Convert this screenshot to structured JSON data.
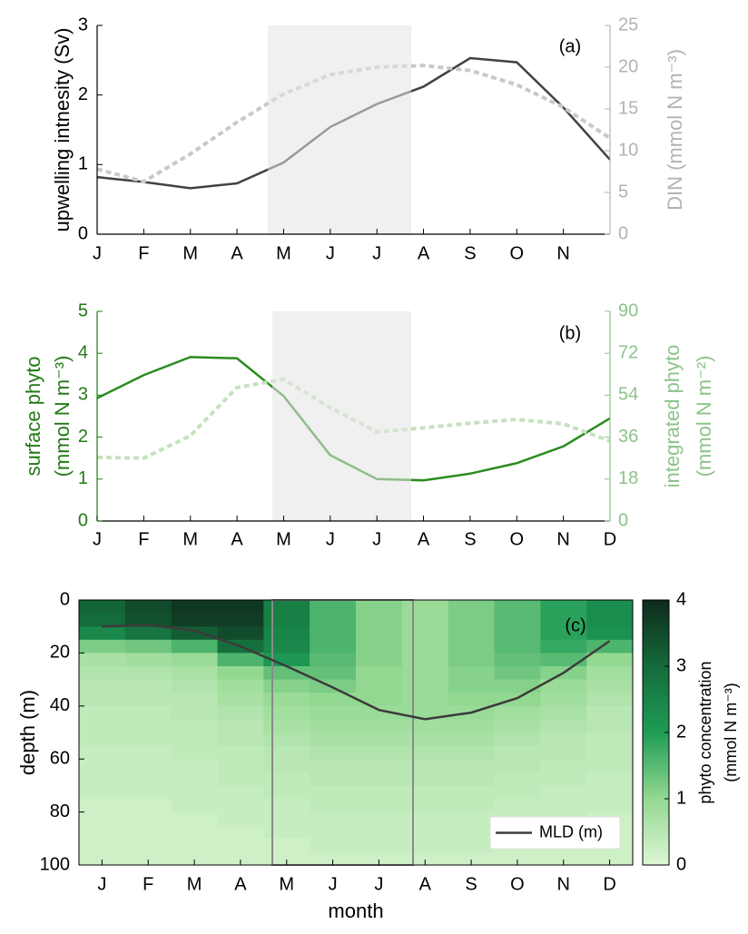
{
  "chart_data": [
    {
      "type": "line",
      "annotation": "(a)",
      "categories": [
        "J",
        "F",
        "M",
        "A",
        "M",
        "J",
        "J",
        "A",
        "S",
        "O",
        "N",
        null
      ],
      "ylabel": [
        "upwelling intnesity (Sv)"
      ],
      "y2label": [
        "DIN (mmol N m⁻³)"
      ],
      "ylim": [
        0,
        3
      ],
      "yticks": [
        0,
        1,
        2,
        3
      ],
      "ycolor": "#000000",
      "y2lim": [
        0,
        25
      ],
      "y2ticks": [
        0,
        5,
        10,
        15,
        20,
        25
      ],
      "y2color": "#b3b3b3",
      "series": [
        {
          "color": "#424242",
          "values": [
            0.82,
            0.75,
            0.66,
            0.73,
            1.03,
            1.54,
            1.87,
            2.12,
            2.53,
            2.47,
            1.82,
            1.07
          ]
        },
        {
          "color": "#c9c9c9",
          "dashed": true,
          "axis": "y2",
          "values": [
            7.8,
            6.3,
            9.6,
            13.4,
            16.8,
            19.1,
            20.0,
            20.2,
            19.6,
            17.9,
            15.2,
            11.5
          ]
        }
      ]
    },
    {
      "type": "line",
      "annotation": "(b)",
      "categories": [
        "J",
        "F",
        "M",
        "A",
        "M",
        "J",
        "J",
        "A",
        "S",
        "O",
        "N",
        "D"
      ],
      "ylabel": [
        "surface phyto",
        "(mmol N m⁻³)"
      ],
      "y2label": [
        "integrated phyto",
        "(mmol N m⁻²)"
      ],
      "ylim": [
        0,
        5
      ],
      "yticks": [
        0,
        1,
        2,
        3,
        4,
        5
      ],
      "ycolor": "#237a16",
      "y2lim": [
        0,
        90
      ],
      "y2ticks": [
        0,
        18,
        36,
        54,
        72,
        90
      ],
      "y2color": "#8cc38a",
      "series": [
        {
          "color": "#2a8c1e",
          "values": [
            2.93,
            3.48,
            3.91,
            3.88,
            2.98,
            1.57,
            1.0,
            0.97,
            1.13,
            1.38,
            1.78,
            2.45
          ]
        },
        {
          "color": "#c6e2bf",
          "dashed": true,
          "axis": "y2",
          "values": [
            27.3,
            27.0,
            36.6,
            57.3,
            60.8,
            48.7,
            38.2,
            40.0,
            42.0,
            43.6,
            41.7,
            34.3
          ]
        }
      ]
    },
    {
      "type": "heatmap",
      "annotation": "(c)",
      "categories": [
        "J",
        "F",
        "M",
        "A",
        "M",
        "J",
        "J",
        "A",
        "S",
        "O",
        "N",
        "D"
      ],
      "xlabel": "month",
      "ylabel": [
        "depth (m)"
      ],
      "ylim": [
        0,
        100
      ],
      "invert_y": true,
      "yticks": [
        0,
        20,
        40,
        60,
        80,
        100
      ],
      "depth_bins": [
        0,
        5,
        10,
        15,
        20,
        25,
        30,
        35,
        40,
        45,
        50,
        55,
        60,
        65,
        70,
        75,
        80,
        85,
        90,
        95,
        100
      ],
      "z": [
        [
          3.1,
          3.5,
          3.8,
          3.8,
          2.6,
          1.6,
          1.1,
          0.9,
          1.2,
          1.5,
          1.9,
          2.3
        ],
        [
          3.0,
          3.4,
          3.7,
          3.7,
          2.6,
          1.6,
          1.1,
          0.9,
          1.2,
          1.5,
          1.9,
          2.3
        ],
        [
          2.4,
          2.8,
          3.2,
          3.5,
          2.5,
          1.6,
          1.1,
          0.9,
          1.2,
          1.5,
          1.9,
          2.2
        ],
        [
          1.2,
          1.3,
          1.6,
          2.9,
          2.4,
          1.6,
          1.1,
          0.9,
          1.2,
          1.5,
          1.8,
          1.6
        ],
        [
          0.7,
          0.8,
          0.9,
          1.6,
          2.1,
          1.5,
          1.1,
          0.9,
          1.2,
          1.4,
          1.5,
          1.0
        ],
        [
          0.6,
          0.6,
          0.7,
          1.0,
          1.4,
          1.4,
          1.0,
          0.9,
          1.1,
          1.3,
          1.1,
          0.8
        ],
        [
          0.5,
          0.5,
          0.6,
          0.8,
          1.1,
          1.2,
          1.0,
          0.9,
          1.1,
          1.1,
          0.9,
          0.7
        ],
        [
          0.5,
          0.5,
          0.5,
          0.7,
          0.9,
          1.0,
          1.0,
          0.9,
          1.0,
          1.0,
          0.8,
          0.6
        ],
        [
          0.4,
          0.4,
          0.5,
          0.6,
          0.8,
          0.9,
          0.9,
          0.9,
          0.9,
          0.8,
          0.7,
          0.5
        ],
        [
          0.4,
          0.4,
          0.4,
          0.5,
          0.7,
          0.8,
          0.8,
          0.8,
          0.8,
          0.7,
          0.6,
          0.5
        ],
        [
          0.4,
          0.4,
          0.4,
          0.5,
          0.6,
          0.7,
          0.7,
          0.7,
          0.7,
          0.6,
          0.5,
          0.4
        ],
        [
          0.3,
          0.3,
          0.4,
          0.4,
          0.5,
          0.6,
          0.6,
          0.6,
          0.6,
          0.5,
          0.5,
          0.4
        ],
        [
          0.3,
          0.3,
          0.3,
          0.4,
          0.5,
          0.5,
          0.5,
          0.5,
          0.5,
          0.5,
          0.4,
          0.4
        ],
        [
          0.3,
          0.3,
          0.3,
          0.4,
          0.4,
          0.5,
          0.5,
          0.5,
          0.5,
          0.4,
          0.4,
          0.3
        ],
        [
          0.3,
          0.3,
          0.3,
          0.3,
          0.4,
          0.4,
          0.4,
          0.4,
          0.4,
          0.4,
          0.3,
          0.3
        ],
        [
          0.2,
          0.2,
          0.3,
          0.3,
          0.3,
          0.4,
          0.4,
          0.4,
          0.4,
          0.3,
          0.3,
          0.3
        ],
        [
          0.2,
          0.2,
          0.2,
          0.3,
          0.3,
          0.3,
          0.3,
          0.3,
          0.3,
          0.3,
          0.3,
          0.2
        ],
        [
          0.2,
          0.2,
          0.2,
          0.2,
          0.3,
          0.3,
          0.3,
          0.3,
          0.3,
          0.3,
          0.2,
          0.2
        ],
        [
          0.2,
          0.2,
          0.2,
          0.2,
          0.2,
          0.3,
          0.3,
          0.3,
          0.3,
          0.2,
          0.2,
          0.2
        ],
        [
          0.2,
          0.2,
          0.2,
          0.2,
          0.2,
          0.2,
          0.2,
          0.2,
          0.2,
          0.2,
          0.2,
          0.2
        ]
      ],
      "zlim": [
        0,
        4
      ],
      "zticks": [
        0,
        1,
        2,
        3,
        4
      ],
      "colormap": [
        "#dcf6d4",
        "#93d891",
        "#1e9c55",
        "#146b3b",
        "#0e2a1b"
      ],
      "colorbar_label": [
        "phyto concentration",
        "(mmol N m⁻³)"
      ],
      "legend": "lower right",
      "series": [
        {
          "name": "MLD (m)",
          "color": "#3b3b3b",
          "values": [
            10,
            9.5,
            11.5,
            17.5,
            25,
            33,
            41.5,
            45,
            42.5,
            37,
            27.5,
            15.5
          ]
        }
      ]
    }
  ]
}
